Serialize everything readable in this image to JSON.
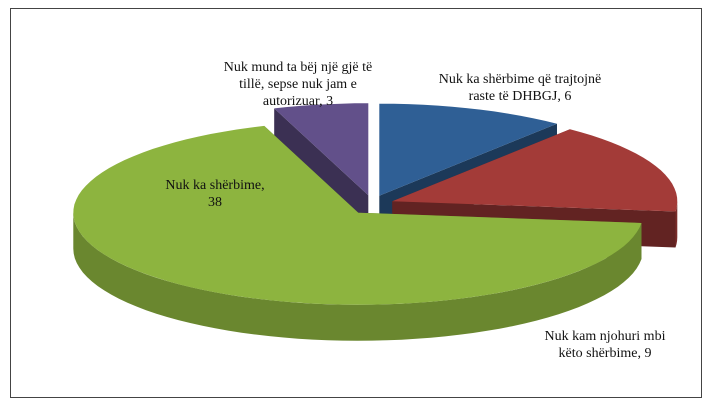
{
  "chart_data": {
    "type": "pie",
    "categories": [
      "Nuk ka shërbime që trajtojnë raste të DHBGJ",
      "Nuk kam njohuri mbi këto shërbime",
      "Nuk ka shërbime",
      "Nuk mund ta bëj një gjë të tillë, sepse nuk jam e autorizuar"
    ],
    "values": [
      6,
      9,
      38,
      3
    ],
    "colors": [
      "#2f5f95",
      "#a33b38",
      "#8db43f",
      "#62508a"
    ]
  }
}
